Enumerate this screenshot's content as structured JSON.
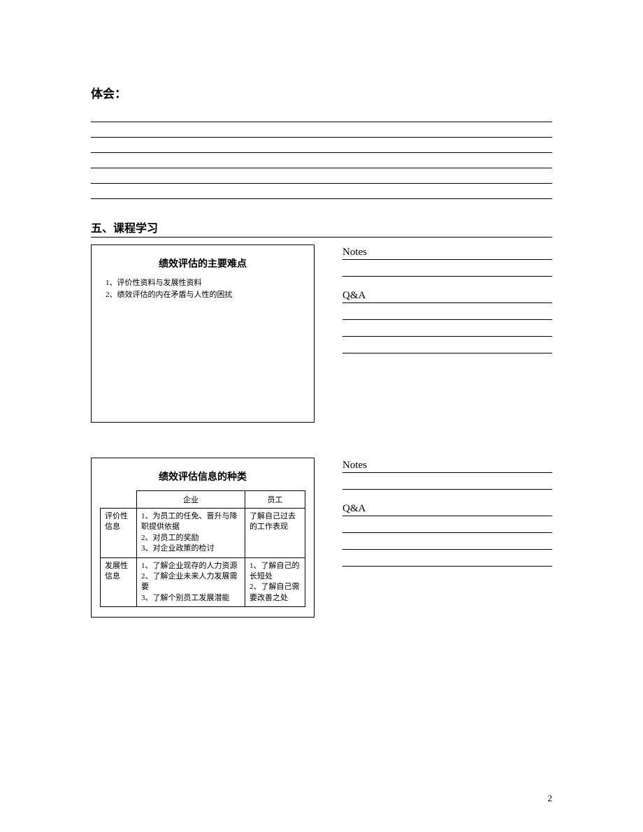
{
  "headings": {
    "tihui": "体会：",
    "section5": "五、课程学习"
  },
  "box1": {
    "title": "绩效评估的主要难点",
    "items": [
      "1、评价性资料与发展性资料",
      "2、绩效评估的内在矛盾与人性的困扰"
    ]
  },
  "box2": {
    "title": "绩效评估信息的种类",
    "columns": [
      "企业",
      "员工"
    ],
    "rows": [
      {
        "label": "评价性信息",
        "enterprise": "1、为员工的任免、晋升与降职提供依据\n2、对员工的奖励\n3、对企业政策的检讨",
        "employee": "了解自己过去的工作表现"
      },
      {
        "label": "发展性信息",
        "enterprise": "1、了解企业现存的人力资源\n2、了解企业未来人力发展需要\n3、了解个别员工发展潜能",
        "employee": "1、了解自己的长短处\n2、了解自己需要改善之处"
      }
    ]
  },
  "labels": {
    "notes": "Notes",
    "qa": "Q&A"
  },
  "page_number": "2"
}
